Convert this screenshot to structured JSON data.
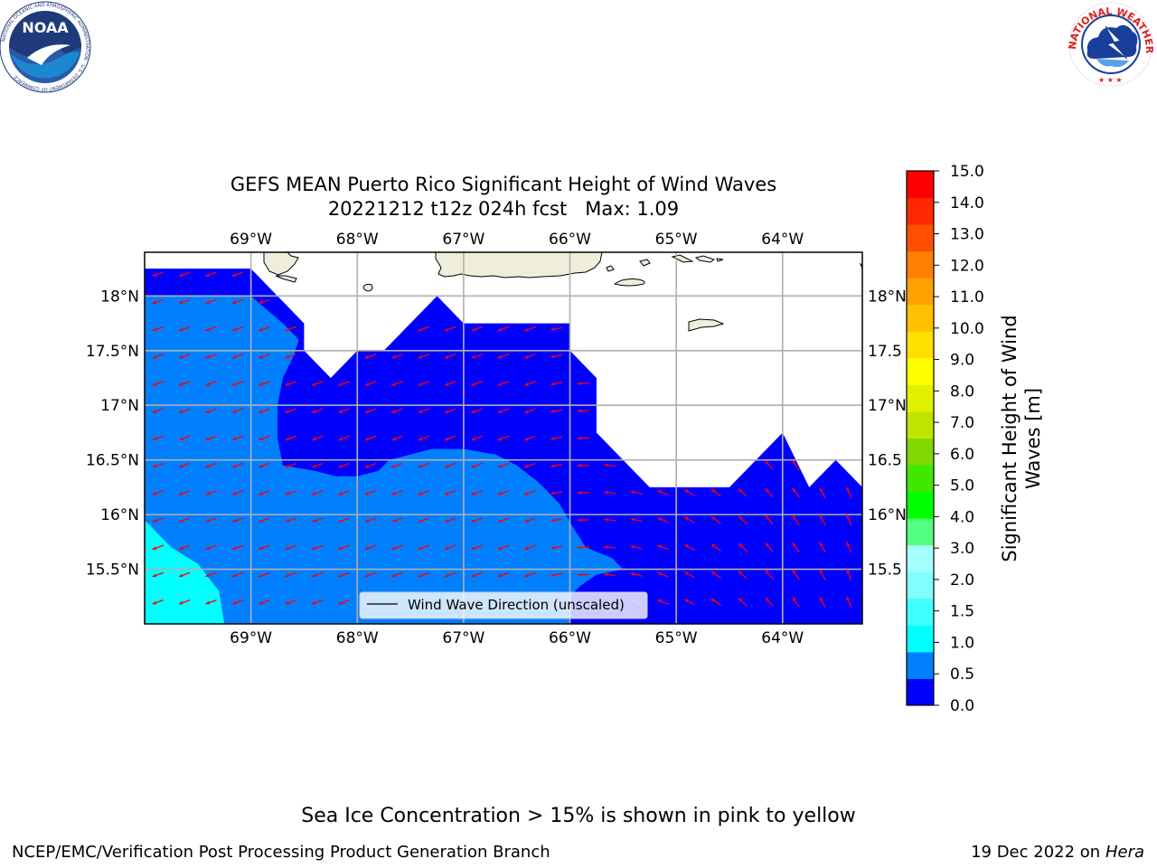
{
  "title_line1": "GEFS MEAN Puerto Rico Significant Height of Wind Waves",
  "title_line2": "20221212 t12z 024h fcst   Max: 1.09",
  "logos": {
    "left": {
      "name": "noaa-logo",
      "text": "NOAA",
      "ring_text": "NATIONAL OCEANIC AND ATMOSPHERIC ADMINISTRATION · U.S. DEPARTMENT OF COMMERCE",
      "colors": {
        "outer": "#ffffff",
        "inner": "#2a5aa8",
        "sky": "#1e3a7a",
        "sea": "#1b88d0"
      }
    },
    "right": {
      "name": "nws-logo",
      "text": "NATIONAL WEATHER SERVICE",
      "colors": {
        "ring": "#e02020",
        "cloud": "#1a3f9a",
        "bolt": "#ffffff"
      }
    }
  },
  "map": {
    "lon_range": [
      -70.0,
      -63.25
    ],
    "lat_range": [
      15.0,
      18.4
    ],
    "lon_ticks": [
      {
        "value": -69,
        "label": "69°W"
      },
      {
        "value": -68,
        "label": "68°W"
      },
      {
        "value": -67,
        "label": "67°W"
      },
      {
        "value": -66,
        "label": "66°W"
      },
      {
        "value": -65,
        "label": "65°W"
      },
      {
        "value": -64,
        "label": "64°W"
      }
    ],
    "lat_ticks": [
      {
        "value": 18.0,
        "label": "18°N"
      },
      {
        "value": 17.5,
        "label": "17.5°N"
      },
      {
        "value": 17.0,
        "label": "17°N"
      },
      {
        "value": 16.5,
        "label": "16.5°N"
      },
      {
        "value": 16.0,
        "label": "16°N"
      },
      {
        "value": 15.5,
        "label": "15.5°N"
      }
    ],
    "right_lat_labels": [
      "18°N",
      "17.5",
      "17°N",
      "16.5",
      "16°N",
      "15.5"
    ],
    "land_color": "#efeedb",
    "grid_color": "#b0b0b0",
    "arrow_color": "#ff0000",
    "legend_label": "Wind Wave Direction (unscaled)",
    "data_region": [
      [
        -70.0,
        18.25
      ],
      [
        -69.0,
        18.25
      ],
      [
        -68.5,
        17.75
      ],
      [
        -68.5,
        17.5
      ],
      [
        -68.25,
        17.25
      ],
      [
        -68.0,
        17.5
      ],
      [
        -67.75,
        17.5
      ],
      [
        -67.25,
        18.0
      ],
      [
        -67.0,
        17.75
      ],
      [
        -66.0,
        17.75
      ],
      [
        -66.0,
        17.5
      ],
      [
        -65.75,
        17.25
      ],
      [
        -65.75,
        16.75
      ],
      [
        -65.25,
        16.25
      ],
      [
        -64.5,
        16.25
      ],
      [
        -64.0,
        16.75
      ],
      [
        -63.75,
        16.25
      ],
      [
        -63.5,
        16.5
      ],
      [
        -63.25,
        16.25
      ],
      [
        -63.25,
        15.0
      ],
      [
        -70.0,
        15.0
      ]
    ],
    "contour_0_5": [
      [
        -70.0,
        18.0
      ],
      [
        -69.0,
        18.0
      ],
      [
        -68.7,
        17.75
      ],
      [
        -68.55,
        17.6
      ],
      [
        -68.6,
        17.45
      ],
      [
        -68.7,
        17.25
      ],
      [
        -68.75,
        17.0
      ],
      [
        -68.75,
        16.7
      ],
      [
        -68.7,
        16.45
      ],
      [
        -68.4,
        16.4
      ],
      [
        -68.2,
        16.35
      ],
      [
        -68.0,
        16.35
      ],
      [
        -67.8,
        16.4
      ],
      [
        -67.7,
        16.5
      ],
      [
        -67.3,
        16.6
      ],
      [
        -67.0,
        16.6
      ],
      [
        -66.7,
        16.55
      ],
      [
        -66.5,
        16.45
      ],
      [
        -66.3,
        16.3
      ],
      [
        -66.1,
        16.1
      ],
      [
        -65.95,
        15.85
      ],
      [
        -65.85,
        15.7
      ],
      [
        -65.6,
        15.6
      ],
      [
        -65.5,
        15.5
      ],
      [
        -65.75,
        15.45
      ],
      [
        -65.9,
        15.35
      ],
      [
        -66.0,
        15.25
      ],
      [
        -66.0,
        15.0
      ],
      [
        -70.0,
        15.0
      ]
    ],
    "contour_1_0": [
      [
        -70.0,
        15.95
      ],
      [
        -69.75,
        15.7
      ],
      [
        -69.5,
        15.55
      ],
      [
        -69.3,
        15.3
      ],
      [
        -69.25,
        15.0
      ],
      [
        -70.0,
        15.0
      ]
    ],
    "arrow_grid": {
      "lon_start": -69.875,
      "lon_step": 0.25,
      "lat_start": 15.2,
      "lat_step": 0.25,
      "cols": 27,
      "rows": 13
    }
  },
  "colorbar": {
    "label_line1": "Significant Height of Wind",
    "label_line2": "Waves [m]",
    "bounds": [
      0.0,
      0.5,
      1.0,
      1.5,
      2.0,
      2.5,
      3.0,
      3.5,
      4.0,
      4.5,
      5.0,
      5.5,
      6.0,
      6.5,
      7.0,
      7.5,
      8.0,
      8.5,
      9.0,
      9.5,
      10.0,
      10.5,
      11.0,
      11.5,
      12.0,
      12.5,
      13.0,
      13.5,
      14.0,
      14.5,
      15.0
    ],
    "tick_labels": [
      "0.0",
      "0.5",
      "1.0",
      "1.5",
      "2.0",
      "3.0",
      "4.0",
      "5.0",
      "6.0",
      "7.0",
      "8.0",
      "9.0",
      "10.0",
      "11.0",
      "12.0",
      "13.0",
      "14.0",
      "15.0"
    ],
    "colors": [
      "#0000ff",
      "#0080ff",
      "#00ffff",
      "#40ffff",
      "#80ffff",
      "#a6ffff",
      "#54ff80",
      "#00ff00",
      "#40e800",
      "#80d800",
      "#c0e400",
      "#e0f000",
      "#ffff00",
      "#ffe000",
      "#ffc000",
      "#ffa000",
      "#ff8000",
      "#ff5000",
      "#ff2800",
      "#ff0000"
    ]
  },
  "footer": {
    "note": "Sea Ice Concentration > 15% is shown in pink to yellow",
    "credit_left": "NCEP/EMC/Verification Post Processing Product Generation Branch",
    "date": "19 Dec 2022",
    "on_word": "on",
    "machine": "Hera"
  }
}
